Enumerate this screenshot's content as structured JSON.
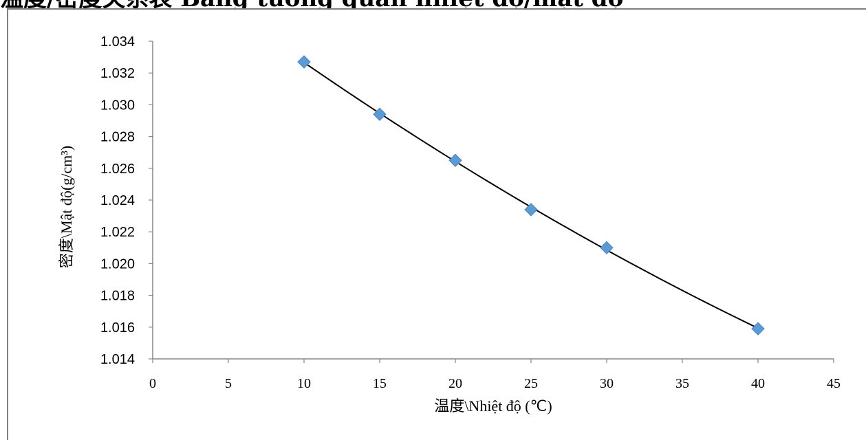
{
  "page": {
    "title": "温度/密度关系表 Bảng tương quan nhiệt độ/mật độ"
  },
  "chart_data": {
    "type": "scatter",
    "title": "",
    "xlabel": "温度\\Nhiệt độ (℃)",
    "ylabel": "密度\\Mật độ(g/cm³)",
    "xlim": [
      0,
      45
    ],
    "ylim": [
      1.014,
      1.034
    ],
    "x_ticks": [
      "0",
      "5",
      "10",
      "15",
      "20",
      "25",
      "30",
      "35",
      "40",
      "45"
    ],
    "y_ticks": [
      "1.014",
      "1.016",
      "1.018",
      "1.020",
      "1.022",
      "1.024",
      "1.026",
      "1.028",
      "1.030",
      "1.032",
      "1.034"
    ],
    "grid": false,
    "trendline": "polynomial",
    "series": [
      {
        "marker": "diamond",
        "color": "#5b9bd5",
        "x": [
          10,
          15,
          20,
          25,
          30,
          40
        ],
        "y": [
          1.0327,
          1.0294,
          1.0265,
          1.0234,
          1.021,
          1.0159
        ]
      }
    ],
    "trend_color": "#000000"
  }
}
